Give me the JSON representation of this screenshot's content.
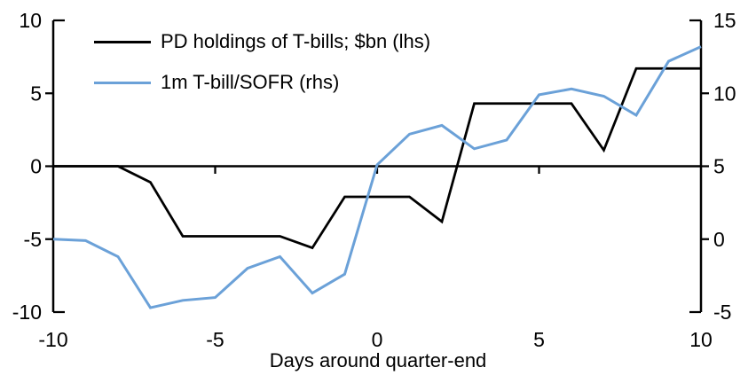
{
  "chart_data": {
    "type": "line",
    "title": "",
    "xlabel": "Days around quarter-end",
    "x": [
      -10,
      -9,
      -8,
      -7,
      -6,
      -5,
      -4,
      -3,
      -2,
      -1,
      0,
      1,
      2,
      3,
      4,
      5,
      6,
      7,
      8,
      9,
      10
    ],
    "series": [
      {
        "name": "PD holdings of T-bills; $bn (lhs)",
        "axis": "left",
        "color": "#000000",
        "values": [
          0,
          0,
          0,
          -1.1,
          -4.8,
          -4.8,
          -4.8,
          -4.8,
          -5.6,
          -2.1,
          -2.1,
          -2.1,
          -3.8,
          4.3,
          4.3,
          4.3,
          4.3,
          1.1,
          6.7,
          6.7,
          6.7
        ]
      },
      {
        "name": "1m T-bill/SOFR (rhs)",
        "axis": "right",
        "color": "#6BA1D8",
        "values": [
          0,
          -0.1,
          -1.2,
          -4.7,
          -4.2,
          -4.0,
          -2.0,
          -1.2,
          -3.7,
          -2.4,
          5.1,
          7.2,
          7.8,
          6.2,
          6.8,
          9.9,
          10.3,
          9.8,
          8.5,
          12.2,
          13.2
        ]
      }
    ],
    "left_axis": {
      "ticks": [
        10,
        5,
        0,
        -5,
        -10
      ],
      "range": [
        -10,
        10
      ]
    },
    "right_axis": {
      "ticks": [
        15,
        10,
        5,
        0,
        -5
      ],
      "range": [
        -5,
        15
      ]
    },
    "x_axis": {
      "ticks": [
        -10,
        -5,
        0,
        5,
        10
      ],
      "inner_ticks": [
        -5,
        0,
        5
      ],
      "range": [
        -10,
        10
      ]
    },
    "grid": "off",
    "zero_line": true,
    "legend_position": "top-left"
  },
  "colors": {
    "background": "#ffffff",
    "axis": "#000000",
    "text": "#000000",
    "accent_blue": "#6BA1D8"
  }
}
